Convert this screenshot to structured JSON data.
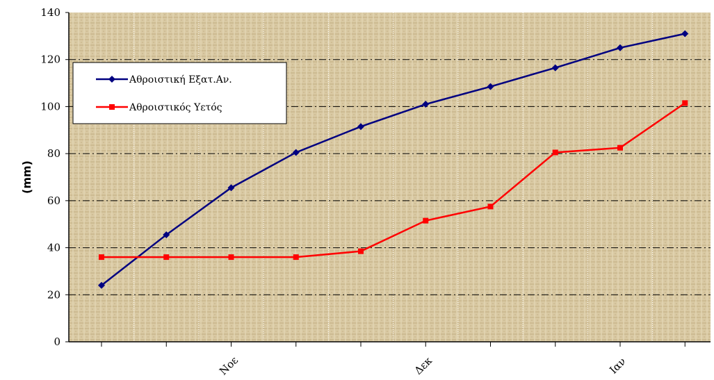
{
  "chart_data": {
    "type": "line",
    "title": "",
    "xlabel": "",
    "ylabel": "(mm)",
    "ylim": [
      0,
      140
    ],
    "yticks": [
      0,
      20,
      40,
      60,
      80,
      100,
      120,
      140
    ],
    "x": [
      1,
      2,
      3,
      4,
      5,
      6,
      7,
      8,
      9,
      10
    ],
    "x_tick_labels": [
      {
        "x": 3,
        "label": "Νοε"
      },
      {
        "x": 6,
        "label": "Δεκ"
      },
      {
        "x": 9,
        "label": "Ιαν"
      }
    ],
    "grid": true,
    "legend": "top-left",
    "series": [
      {
        "name": "Αθροιστική Εξατ.Αν.",
        "color": "#000080",
        "marker": "diamond",
        "values": [
          24,
          45.5,
          65.5,
          80.5,
          91.5,
          101,
          108.5,
          116.5,
          125,
          131
        ]
      },
      {
        "name": "Αθροιστικός Υετός",
        "color": "#ff0000",
        "marker": "square",
        "values": [
          36,
          36,
          36,
          36,
          38.5,
          51.5,
          57.5,
          80.5,
          82.5,
          101.5
        ]
      }
    ]
  }
}
